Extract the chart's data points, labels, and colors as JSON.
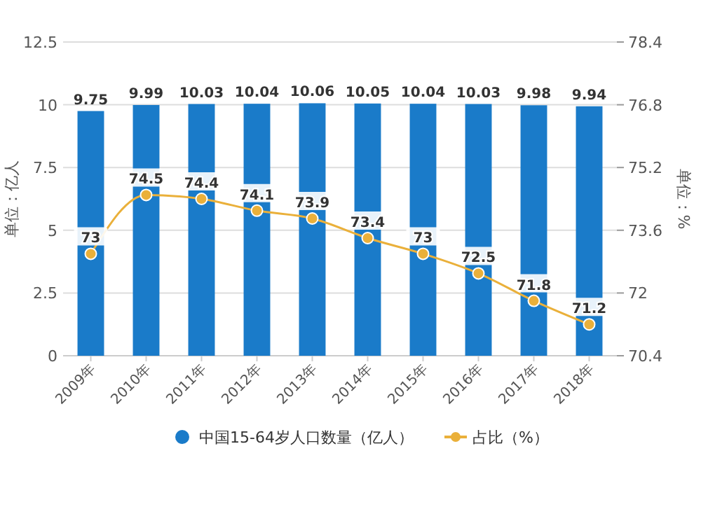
{
  "chart_data": {
    "type": "bar",
    "categories": [
      "2009年",
      "2010年",
      "2011年",
      "2012年",
      "2013年",
      "2014年",
      "2015年",
      "2016年",
      "2017年",
      "2018年"
    ],
    "series": [
      {
        "name": "中国15-64岁人口数量（亿人）",
        "color": "#1a7bc9",
        "values": [
          9.75,
          9.99,
          10.03,
          10.04,
          10.06,
          10.05,
          10.04,
          10.03,
          9.98,
          9.94
        ]
      },
      {
        "name": "占比（%）",
        "type": "line",
        "axis": "y2",
        "color": "#eab03a",
        "marker": "circle",
        "values": [
          73,
          74.5,
          74.4,
          74.1,
          73.9,
          73.4,
          73,
          72.5,
          71.8,
          71.2
        ]
      }
    ],
    "ylabel": "单位：亿人",
    "y2label": "单位：%",
    "ylim": [
      0,
      12.5
    ],
    "yticks": [
      0,
      2.5,
      5,
      7.5,
      10,
      12.5
    ],
    "y2lim": [
      70.4,
      78.4
    ],
    "y2ticks": [
      70.4,
      72,
      73.6,
      75.2,
      76.8,
      78.4
    ],
    "grid": "y",
    "legend": "bottom",
    "data_labels": true
  }
}
